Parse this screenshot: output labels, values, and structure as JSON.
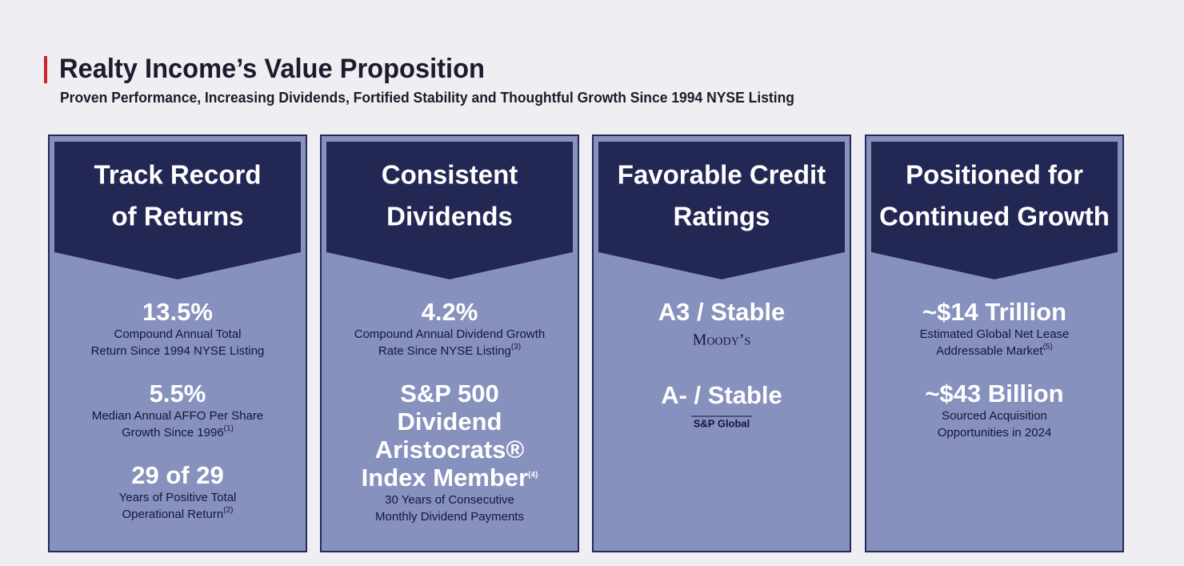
{
  "header": {
    "title": "Realty Income’s Value Proposition",
    "subtitle": "Proven Performance, Increasing Dividends, Fortified Stability and Thoughtful Growth Since 1994 NYSE Listing"
  },
  "columns": [
    {
      "heading": [
        "Track Record",
        "of Returns"
      ],
      "items": [
        {
          "value": [
            "13.5%"
          ],
          "description": [
            "Compound Annual Total",
            "Return Since 1994 NYSE Listing"
          ]
        },
        {
          "value": [
            "5.5%"
          ],
          "description": [
            "Median Annual AFFO Per Share",
            "Growth Since 1996"
          ],
          "note": "(1)"
        },
        {
          "value": [
            "29 of 29"
          ],
          "description": [
            "Years of Positive Total",
            "Operational Return"
          ],
          "note": "(2)"
        }
      ]
    },
    {
      "heading": [
        "Consistent",
        "Dividends"
      ],
      "items": [
        {
          "value": [
            "4.2%"
          ],
          "description": [
            "Compound Annual Dividend Growth",
            "Rate Since NYSE Listing"
          ],
          "note": "(3)"
        },
        {
          "value": [
            "S&P 500",
            "Dividend",
            "Aristocrats®",
            "Index Member"
          ],
          "value_note": "(4)",
          "description": [
            "30 Years of Consecutive",
            "Monthly Dividend Payments"
          ]
        }
      ]
    },
    {
      "heading": [
        "Favorable Credit",
        "Ratings"
      ],
      "items": [
        {
          "value": [
            "A3 / Stable"
          ],
          "source": "Moody’s"
        },
        {
          "value": [
            "A- / Stable"
          ],
          "source": "S&P Global"
        }
      ]
    },
    {
      "heading": [
        "Positioned for",
        "Continued Growth"
      ],
      "items": [
        {
          "value": [
            "~$14 Trillion"
          ],
          "description": [
            "Estimated Global Net Lease",
            "Addressable Market"
          ],
          "note": "(5)"
        },
        {
          "value": [
            "~$43 Billion"
          ],
          "description": [
            "Sourced Acquisition",
            "Opportunities in 2024"
          ]
        }
      ]
    }
  ]
}
